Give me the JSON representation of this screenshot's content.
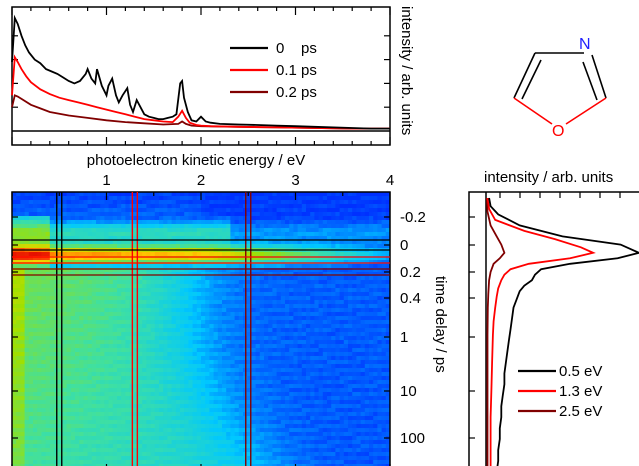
{
  "figure": {
    "spectra_panel": {
      "type": "line",
      "xlabel": "photoelectron kinetic energy / eV",
      "ylabel": "intensity / arb. units",
      "xlim": [
        0,
        4
      ],
      "ylim": [
        0,
        1
      ],
      "xticks": [
        1,
        2,
        3,
        4
      ],
      "legend_position": "top-right",
      "series": [
        {
          "name": "0    ps",
          "color": "#000000",
          "x": [
            0.0,
            0.03,
            0.06,
            0.1,
            0.14,
            0.18,
            0.24,
            0.3,
            0.36,
            0.42,
            0.48,
            0.54,
            0.6,
            0.66,
            0.72,
            0.78,
            0.8,
            0.84,
            0.88,
            0.9,
            0.95,
            1.0,
            1.02,
            1.06,
            1.1,
            1.13,
            1.17,
            1.22,
            1.25,
            1.28,
            1.32,
            1.36,
            1.4,
            1.45,
            1.5,
            1.55,
            1.6,
            1.65,
            1.7,
            1.74,
            1.78,
            1.8,
            1.82,
            1.86,
            1.9,
            1.95,
            2.0,
            2.05,
            2.1,
            2.2,
            2.4,
            2.6,
            2.8,
            3.0,
            3.2,
            3.4,
            3.6,
            3.8,
            4.0
          ],
          "y": [
            0.58,
            0.95,
            0.9,
            0.8,
            0.72,
            0.66,
            0.6,
            0.57,
            0.52,
            0.5,
            0.48,
            0.45,
            0.42,
            0.4,
            0.42,
            0.48,
            0.52,
            0.44,
            0.4,
            0.52,
            0.38,
            0.3,
            0.38,
            0.44,
            0.3,
            0.24,
            0.3,
            0.36,
            0.22,
            0.16,
            0.26,
            0.2,
            0.14,
            0.12,
            0.11,
            0.1,
            0.1,
            0.11,
            0.12,
            0.14,
            0.4,
            0.42,
            0.28,
            0.16,
            0.09,
            0.08,
            0.12,
            0.08,
            0.07,
            0.06,
            0.055,
            0.05,
            0.045,
            0.04,
            0.035,
            0.03,
            0.025,
            0.02,
            0.02
          ]
        },
        {
          "name": "0.1 ps",
          "color": "#ff0000",
          "x": [
            0.0,
            0.03,
            0.06,
            0.1,
            0.15,
            0.2,
            0.3,
            0.4,
            0.5,
            0.6,
            0.7,
            0.8,
            0.9,
            1.0,
            1.1,
            1.2,
            1.3,
            1.4,
            1.5,
            1.6,
            1.7,
            1.76,
            1.8,
            1.84,
            1.88,
            1.95,
            2.0,
            2.1,
            2.4,
            2.8,
            3.2,
            3.6,
            4.0
          ],
          "y": [
            0.3,
            0.62,
            0.58,
            0.52,
            0.46,
            0.41,
            0.35,
            0.31,
            0.28,
            0.26,
            0.24,
            0.22,
            0.2,
            0.18,
            0.16,
            0.14,
            0.12,
            0.1,
            0.09,
            0.08,
            0.075,
            0.12,
            0.17,
            0.11,
            0.07,
            0.05,
            0.045,
            0.04,
            0.035,
            0.03,
            0.025,
            0.02,
            0.02
          ]
        },
        {
          "name": "0.2 ps",
          "color": "#800000",
          "x": [
            0.0,
            0.03,
            0.06,
            0.1,
            0.2,
            0.3,
            0.4,
            0.6,
            0.8,
            1.0,
            1.2,
            1.4,
            1.6,
            1.76,
            1.8,
            1.84,
            1.9,
            2.0,
            2.4,
            2.8,
            3.2,
            3.6,
            4.0
          ],
          "y": [
            0.2,
            0.3,
            0.29,
            0.27,
            0.22,
            0.19,
            0.16,
            0.13,
            0.11,
            0.09,
            0.075,
            0.065,
            0.055,
            0.06,
            0.08,
            0.06,
            0.045,
            0.04,
            0.035,
            0.03,
            0.025,
            0.02,
            0.02
          ]
        }
      ]
    },
    "map_panel": {
      "type": "heatmap",
      "xlim": [
        0,
        4
      ],
      "time_ticks": [
        "-0.2",
        "0",
        "0.2",
        "0.4",
        "1",
        "10",
        "100"
      ],
      "ylabel": "time delay / ps",
      "colormap": [
        "#0030ff",
        "#00c8ff",
        "#40e0a0",
        "#a0e000",
        "#ffd000",
        "#ff5000",
        "#e00000"
      ],
      "cut_lines_energy": [
        {
          "energy": 0.5,
          "color": "#000000"
        },
        {
          "energy": 1.3,
          "color": "#ff0000"
        },
        {
          "energy": 2.5,
          "color": "#800000"
        }
      ]
    },
    "transients_panel": {
      "type": "line",
      "xlabel": "intensity / arb. units",
      "legend_position": "bottom-right",
      "series": [
        {
          "name": "0.5 eV",
          "color": "#000000",
          "t": [
            0,
            0.03,
            0.06,
            0.1,
            0.14,
            0.17,
            0.2,
            0.22,
            0.24,
            0.26,
            0.28,
            0.3,
            0.32,
            0.34,
            0.37,
            0.4,
            0.44,
            0.48,
            0.52,
            0.56,
            0.6,
            0.64,
            0.68,
            0.72,
            0.76,
            0.8,
            0.84,
            0.88,
            0.92,
            0.96,
            1.0
          ],
          "y": [
            0.02,
            0.03,
            0.08,
            0.22,
            0.5,
            0.88,
            1.0,
            0.86,
            0.55,
            0.36,
            0.32,
            0.3,
            0.25,
            0.22,
            0.2,
            0.18,
            0.17,
            0.16,
            0.15,
            0.14,
            0.13,
            0.12,
            0.12,
            0.11,
            0.1,
            0.1,
            0.09,
            0.09,
            0.08,
            0.08,
            0.07
          ]
        },
        {
          "name": "1.3 eV",
          "color": "#ff0000",
          "t": [
            0,
            0.04,
            0.08,
            0.12,
            0.15,
            0.18,
            0.2,
            0.22,
            0.24,
            0.26,
            0.28,
            0.3,
            0.33,
            0.36,
            0.4,
            0.45,
            0.5,
            0.6,
            0.7,
            0.8,
            0.9,
            1.0
          ],
          "y": [
            0.01,
            0.02,
            0.06,
            0.25,
            0.45,
            0.62,
            0.7,
            0.55,
            0.28,
            0.16,
            0.12,
            0.1,
            0.08,
            0.07,
            0.06,
            0.05,
            0.045,
            0.04,
            0.035,
            0.03,
            0.03,
            0.03
          ]
        },
        {
          "name": "2.5 eV",
          "color": "#800000",
          "t": [
            0,
            0.05,
            0.1,
            0.14,
            0.17,
            0.2,
            0.22,
            0.24,
            0.27,
            0.3,
            0.35,
            0.4,
            0.5,
            0.6,
            0.8,
            1.0
          ],
          "y": [
            0.005,
            0.01,
            0.03,
            0.07,
            0.1,
            0.12,
            0.09,
            0.05,
            0.03,
            0.02,
            0.015,
            0.012,
            0.01,
            0.01,
            0.01,
            0.01
          ]
        }
      ]
    },
    "molecule": {
      "heteroatoms": [
        {
          "symbol": "N",
          "color": "#2020ff"
        },
        {
          "symbol": "O",
          "color": "#ff0000"
        }
      ]
    }
  }
}
